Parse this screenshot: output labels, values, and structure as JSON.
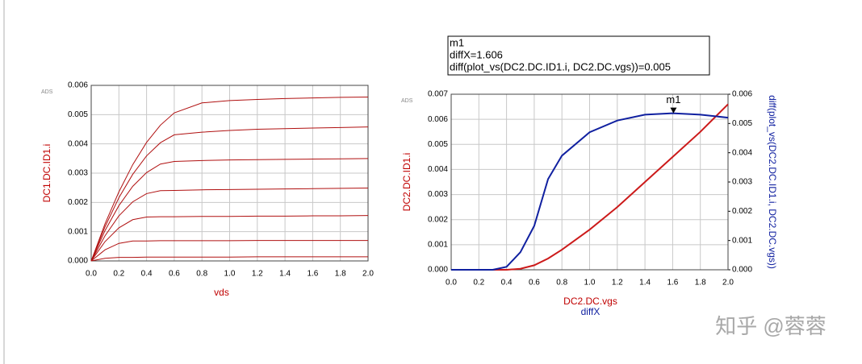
{
  "watermark": "知乎 @蓉蓉",
  "chart_data": [
    {
      "type": "line",
      "brand": "ADS",
      "x_label": "vds",
      "y_label": "DC1.DC.ID1.i",
      "x": [
        0,
        0.1,
        0.2,
        0.3,
        0.4,
        0.5,
        0.6,
        0.8,
        1.0,
        1.2,
        1.4,
        1.6,
        1.8,
        2.0
      ],
      "xlim": [
        0,
        2
      ],
      "xticks": [
        {
          "value": 0,
          "label": "0.0"
        },
        {
          "value": 0.2,
          "label": "0.2"
        },
        {
          "value": 0.4,
          "label": "0.4"
        },
        {
          "value": 0.6,
          "label": "0.6"
        },
        {
          "value": 0.8,
          "label": "0.8"
        },
        {
          "value": 1.0,
          "label": "1.0"
        },
        {
          "value": 1.2,
          "label": "1.2"
        },
        {
          "value": 1.4,
          "label": "1.4"
        },
        {
          "value": 1.6,
          "label": "1.6"
        },
        {
          "value": 1.8,
          "label": "1.8"
        },
        {
          "value": 2.0,
          "label": "2.0"
        }
      ],
      "ylim": [
        0,
        0.006
      ],
      "yticks": [
        {
          "value": 0,
          "label": "0.000"
        },
        {
          "value": 0.001,
          "label": "0.001"
        },
        {
          "value": 0.002,
          "label": "0.002"
        },
        {
          "value": 0.003,
          "label": "0.003"
        },
        {
          "value": 0.004,
          "label": "0.004"
        },
        {
          "value": 0.005,
          "label": "0.005"
        },
        {
          "value": 0.006,
          "label": "0.006"
        }
      ],
      "grid": true,
      "series": [
        {
          "color": "#b01010",
          "values": [
            0,
            0.00127,
            0.00236,
            0.00329,
            0.00405,
            0.00464,
            0.00506,
            0.0054,
            0.00548,
            0.00552,
            0.00555,
            0.00557,
            0.00559,
            0.0056
          ]
        },
        {
          "color": "#b01010",
          "values": [
            0,
            0.00117,
            0.00216,
            0.00296,
            0.00359,
            0.00404,
            0.00431,
            0.0044,
            0.00446,
            0.0045,
            0.00452,
            0.00454,
            0.00456,
            0.00458
          ]
        },
        {
          "color": "#b01010",
          "values": [
            0,
            0.00104,
            0.00189,
            0.00255,
            0.00302,
            0.00331,
            0.0034,
            0.00343,
            0.00345,
            0.00346,
            0.00347,
            0.00348,
            0.00349,
            0.0035
          ]
        },
        {
          "color": "#b01010",
          "values": [
            0,
            0.00086,
            0.00154,
            0.00202,
            0.0023,
            0.0024,
            0.00241,
            0.00243,
            0.00244,
            0.00245,
            0.00246,
            0.00247,
            0.00248,
            0.00249
          ]
        },
        {
          "color": "#b01010",
          "values": [
            0,
            0.00066,
            0.00113,
            0.00141,
            0.0015,
            0.00151,
            0.00151,
            0.00152,
            0.00152,
            0.00153,
            0.00153,
            0.00154,
            0.00154,
            0.00155
          ]
        },
        {
          "color": "#b01010",
          "values": [
            0,
            0.00038,
            0.0006,
            0.00068,
            0.00068,
            0.00069,
            0.00069,
            0.00069,
            0.00069,
            0.0007,
            0.0007,
            0.0007,
            0.0007,
            0.0007
          ]
        },
        {
          "color": "#b01010",
          "values": [
            0,
            9e-05,
            0.00012,
            0.00012,
            0.00013,
            0.00013,
            0.00013,
            0.00013,
            0.00013,
            0.00014,
            0.00014,
            0.00014,
            0.00014,
            0.00014
          ]
        }
      ]
    },
    {
      "type": "line",
      "brand": "ADS",
      "x_labels": [
        "DC2.DC.vgs",
        "diffX"
      ],
      "y_label": "DC2.DC.ID1.i",
      "y2_label": "diff(plot_vs(DC2.DC.ID1.i, DC2.DC.vgs))",
      "x": [
        0,
        0.2,
        0.3,
        0.4,
        0.5,
        0.6,
        0.7,
        0.8,
        1.0,
        1.2,
        1.4,
        1.6,
        1.8,
        2.0
      ],
      "xlim": [
        0,
        2
      ],
      "xticks": [
        {
          "value": 0,
          "label": "0.0"
        },
        {
          "value": 0.2,
          "label": "0.2"
        },
        {
          "value": 0.4,
          "label": "0.4"
        },
        {
          "value": 0.6,
          "label": "0.6"
        },
        {
          "value": 0.8,
          "label": "0.8"
        },
        {
          "value": 1.0,
          "label": "1.0"
        },
        {
          "value": 1.2,
          "label": "1.2"
        },
        {
          "value": 1.4,
          "label": "1.4"
        },
        {
          "value": 1.6,
          "label": "1.6"
        },
        {
          "value": 1.8,
          "label": "1.8"
        },
        {
          "value": 2.0,
          "label": "2.0"
        }
      ],
      "ylim": [
        0,
        0.007
      ],
      "yticks": [
        {
          "value": 0,
          "label": "0.000"
        },
        {
          "value": 0.001,
          "label": "0.001"
        },
        {
          "value": 0.002,
          "label": "0.002"
        },
        {
          "value": 0.003,
          "label": "0.003"
        },
        {
          "value": 0.004,
          "label": "0.004"
        },
        {
          "value": 0.005,
          "label": "0.005"
        },
        {
          "value": 0.006,
          "label": "0.006"
        },
        {
          "value": 0.007,
          "label": "0.007"
        }
      ],
      "y2lim": [
        0,
        0.006
      ],
      "y2ticks": [
        {
          "value": 0,
          "label": "0.000"
        },
        {
          "value": 0.001,
          "label": "0.001"
        },
        {
          "value": 0.002,
          "label": "0.002"
        },
        {
          "value": 0.003,
          "label": "0.003"
        },
        {
          "value": 0.004,
          "label": "0.004"
        },
        {
          "value": 0.005,
          "label": "0.005"
        },
        {
          "value": 0.006,
          "label": "0.006"
        }
      ],
      "grid": true,
      "series": [
        {
          "color": "#cc1a1a",
          "values": [
            0,
            0,
            0,
            0,
            4e-05,
            0.00018,
            0.00045,
            0.0008,
            0.0016,
            0.0025,
            0.0035,
            0.0045,
            0.0055,
            0.0066
          ]
        },
        {
          "color": "#1020a0",
          "axis": "y2",
          "values": [
            0,
            0,
            0,
            0.0001,
            0.0006,
            0.0015,
            0.0031,
            0.0039,
            0.0047,
            0.0051,
            0.0053,
            0.00535,
            0.0053,
            0.0052
          ]
        }
      ],
      "marker": {
        "name": "m1",
        "x": 1.606,
        "y": 0.00535,
        "axis": "y2",
        "readout": [
          "m1",
          "diffX=1.606",
          "diff(plot_vs(DC2.DC.ID1.i, DC2.DC.vgs))=0.005"
        ]
      }
    }
  ]
}
